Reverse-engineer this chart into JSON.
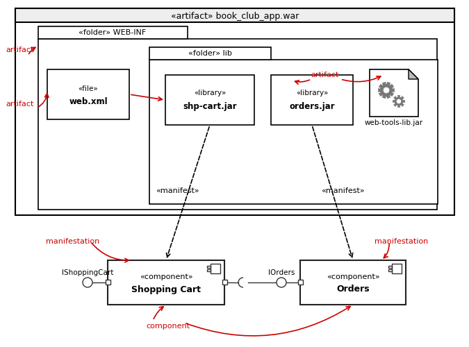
{
  "bg_color": "#ffffff",
  "red_color": "#cc0000",
  "black": "#000000",
  "dark_gray": "#333333",
  "title_text": "«artifact» book_club_app.war",
  "webinf_text": "«folder» WEB-INF",
  "lib_text": "«folder» lib",
  "webxml_stereo": "«file»",
  "webxml_name": "web.xml",
  "shpcart_stereo": "«library»",
  "shpcart_name": "shp-cart.jar",
  "orders_stereo": "«library»",
  "orders_name": "orders.jar",
  "webtool_name": "web-tools-lib.jar",
  "manifest_text": "«manifest»",
  "sc_stereo": "«component»",
  "sc_name": "Shopping Cart",
  "ord_stereo": "«component»",
  "ord_name": "Orders",
  "ishop_label": "IShoppingCart",
  "iord_label": "IOrders",
  "artifact_label": "artifact",
  "manifestation_label": "manifestation",
  "component_label": "component"
}
